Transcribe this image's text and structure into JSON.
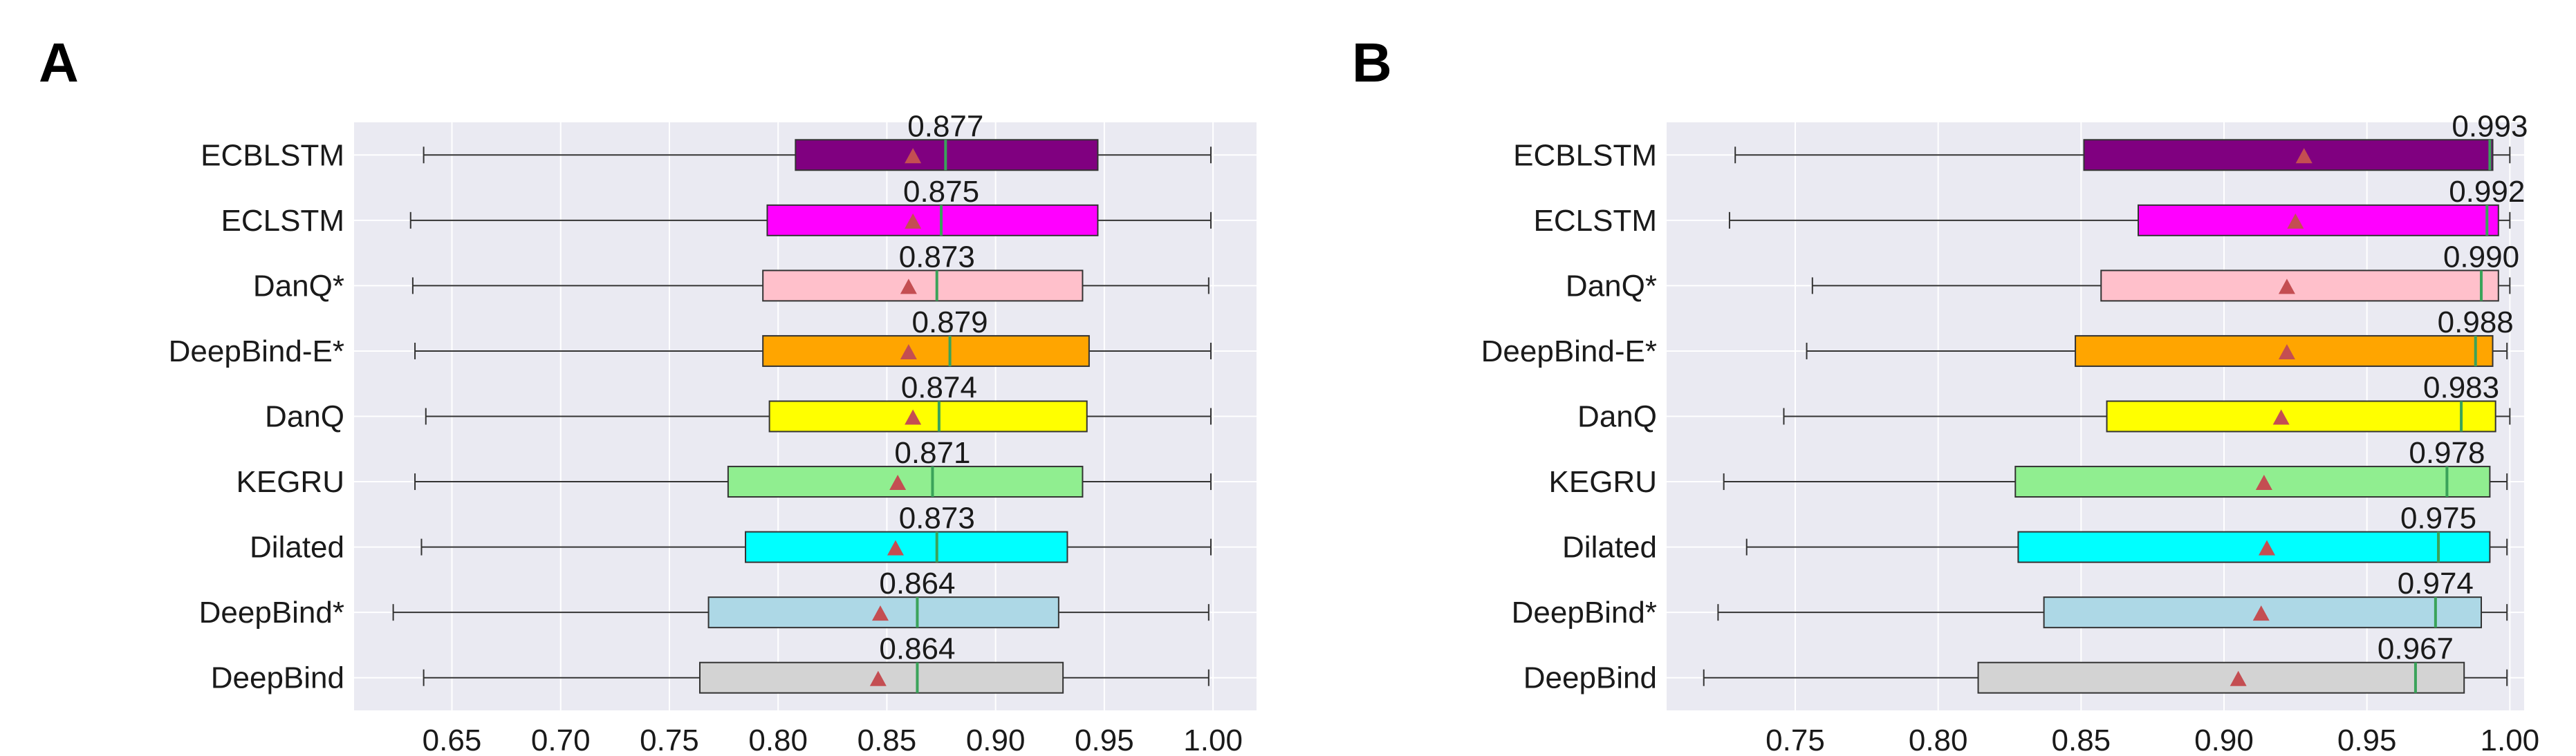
{
  "chart_data": [
    {
      "type": "boxplot",
      "panel_label": "A",
      "title": "",
      "xlabel": "",
      "ylabel": "",
      "xlim": [
        0.605,
        1.02
      ],
      "xticks": [
        "0.65",
        "0.70",
        "0.75",
        "0.80",
        "0.85",
        "0.90",
        "0.95",
        "1.00"
      ],
      "xtick_values": [
        0.65,
        0.7,
        0.75,
        0.8,
        0.85,
        0.9,
        0.95,
        1.0
      ],
      "grid": true,
      "categories": [
        "ECBLSTM",
        "ECLSTM",
        "DanQ*",
        "DeepBind-E*",
        "DanQ",
        "KEGRU",
        "Dilated",
        "DeepBind*",
        "DeepBind"
      ],
      "series": [
        {
          "name": "ECBLSTM",
          "color": "#800080",
          "whisker_low": 0.637,
          "q1": 0.808,
          "median": 0.877,
          "q3": 0.947,
          "whisker_high": 0.999,
          "mean": 0.862,
          "median_label": "0.877"
        },
        {
          "name": "ECLSTM",
          "color": "#ff00ff",
          "whisker_low": 0.631,
          "q1": 0.795,
          "median": 0.875,
          "q3": 0.947,
          "whisker_high": 0.999,
          "mean": 0.862,
          "median_label": "0.875"
        },
        {
          "name": "DanQ*",
          "color": "#ffc0cb",
          "whisker_low": 0.632,
          "q1": 0.793,
          "median": 0.873,
          "q3": 0.94,
          "whisker_high": 0.998,
          "mean": 0.86,
          "median_label": "0.873"
        },
        {
          "name": "DeepBind-E*",
          "color": "#ffa500",
          "whisker_low": 0.633,
          "q1": 0.793,
          "median": 0.879,
          "q3": 0.943,
          "whisker_high": 0.999,
          "mean": 0.86,
          "median_label": "0.879"
        },
        {
          "name": "DanQ",
          "color": "#ffff00",
          "whisker_low": 0.638,
          "q1": 0.796,
          "median": 0.874,
          "q3": 0.942,
          "whisker_high": 0.999,
          "mean": 0.862,
          "median_label": "0.874"
        },
        {
          "name": "KEGRU",
          "color": "#90ee90",
          "whisker_low": 0.633,
          "q1": 0.777,
          "median": 0.871,
          "q3": 0.94,
          "whisker_high": 0.999,
          "mean": 0.855,
          "median_label": "0.871"
        },
        {
          "name": "Dilated",
          "color": "#00ffff",
          "whisker_low": 0.636,
          "q1": 0.785,
          "median": 0.873,
          "q3": 0.933,
          "whisker_high": 0.999,
          "mean": 0.854,
          "median_label": "0.873"
        },
        {
          "name": "DeepBind*",
          "color": "#add8e6",
          "whisker_low": 0.623,
          "q1": 0.768,
          "median": 0.864,
          "q3": 0.929,
          "whisker_high": 0.998,
          "mean": 0.847,
          "median_label": "0.864"
        },
        {
          "name": "DeepBind",
          "color": "#d3d3d3",
          "whisker_low": 0.637,
          "q1": 0.764,
          "median": 0.864,
          "q3": 0.931,
          "whisker_high": 0.998,
          "mean": 0.846,
          "median_label": "0.864"
        }
      ]
    },
    {
      "type": "boxplot",
      "panel_label": "B",
      "title": "",
      "xlabel": "",
      "ylabel": "",
      "xlim": [
        0.705,
        1.005
      ],
      "xticks": [
        "0.75",
        "0.80",
        "0.85",
        "0.90",
        "0.95",
        "1.00"
      ],
      "xtick_values": [
        0.75,
        0.8,
        0.85,
        0.9,
        0.95,
        1.0
      ],
      "grid": true,
      "categories": [
        "ECBLSTM",
        "ECLSTM",
        "DanQ*",
        "DeepBind-E*",
        "DanQ",
        "KEGRU",
        "Dilated",
        "DeepBind*",
        "DeepBind"
      ],
      "series": [
        {
          "name": "ECBLSTM",
          "color": "#800080",
          "whisker_low": 0.729,
          "q1": 0.851,
          "median": 0.993,
          "q3": 0.994,
          "whisker_high": 1.0,
          "mean": 0.928,
          "median_label": "0.993"
        },
        {
          "name": "ECLSTM",
          "color": "#ff00ff",
          "whisker_low": 0.727,
          "q1": 0.87,
          "median": 0.992,
          "q3": 0.996,
          "whisker_high": 1.0,
          "mean": 0.925,
          "median_label": "0.992"
        },
        {
          "name": "DanQ*",
          "color": "#ffc0cb",
          "whisker_low": 0.756,
          "q1": 0.857,
          "median": 0.99,
          "q3": 0.996,
          "whisker_high": 1.0,
          "mean": 0.922,
          "median_label": "0.990"
        },
        {
          "name": "DeepBind-E*",
          "color": "#ffa500",
          "whisker_low": 0.754,
          "q1": 0.848,
          "median": 0.988,
          "q3": 0.994,
          "whisker_high": 0.999,
          "mean": 0.922,
          "median_label": "0.988"
        },
        {
          "name": "DanQ",
          "color": "#ffff00",
          "whisker_low": 0.746,
          "q1": 0.859,
          "median": 0.983,
          "q3": 0.995,
          "whisker_high": 1.0,
          "mean": 0.92,
          "median_label": "0.983"
        },
        {
          "name": "KEGRU",
          "color": "#90ee90",
          "whisker_low": 0.725,
          "q1": 0.827,
          "median": 0.978,
          "q3": 0.993,
          "whisker_high": 0.999,
          "mean": 0.914,
          "median_label": "0.978"
        },
        {
          "name": "Dilated",
          "color": "#00ffff",
          "whisker_low": 0.733,
          "q1": 0.828,
          "median": 0.975,
          "q3": 0.993,
          "whisker_high": 0.999,
          "mean": 0.915,
          "median_label": "0.975"
        },
        {
          "name": "DeepBind*",
          "color": "#add8e6",
          "whisker_low": 0.723,
          "q1": 0.837,
          "median": 0.974,
          "q3": 0.99,
          "whisker_high": 0.999,
          "mean": 0.913,
          "median_label": "0.974"
        },
        {
          "name": "DeepBind",
          "color": "#d3d3d3",
          "whisker_low": 0.718,
          "q1": 0.814,
          "median": 0.967,
          "q3": 0.984,
          "whisker_high": 0.999,
          "mean": 0.905,
          "median_label": "0.967"
        }
      ]
    }
  ],
  "style": {
    "plot_background": "#eaeaf2",
    "grid_color": "#ffffff",
    "median_color": "#3aa35a",
    "mean_marker_color": "#c44e52",
    "box_edge_color": "#333333",
    "whisker_color": "#333333"
  }
}
